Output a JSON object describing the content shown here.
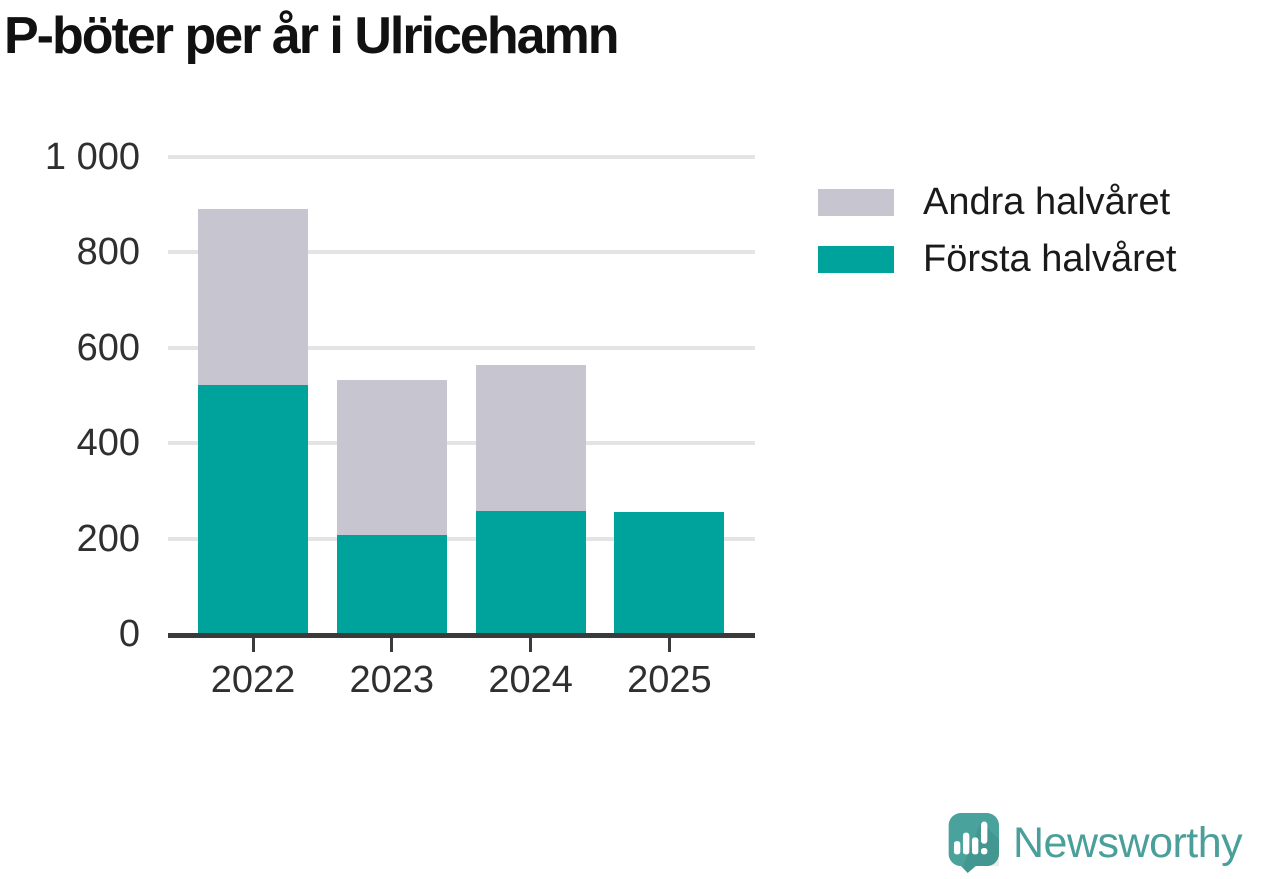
{
  "title": "P-böter per år i Ulricehamn",
  "legend": [
    {
      "label": "Andra halvåret",
      "color": "#c7c5d0"
    },
    {
      "label": "Första halvåret",
      "color": "#00a39b"
    }
  ],
  "chart_data": {
    "type": "bar",
    "stacked": true,
    "title": "P-böter per år i Ulricehamn",
    "categories": [
      "2022",
      "2023",
      "2024",
      "2025"
    ],
    "series": [
      {
        "name": "Första halvåret",
        "color": "#00a39b",
        "values": [
          522,
          208,
          257,
          255
        ]
      },
      {
        "name": "Andra halvåret",
        "color": "#c7c5d0",
        "values": [
          370,
          325,
          306,
          0
        ]
      }
    ],
    "totals": [
      892,
      533,
      563,
      255
    ],
    "xlabel": "",
    "ylabel": "",
    "ylim": [
      0,
      1000
    ],
    "yticks": [
      0,
      200,
      400,
      600,
      800,
      1000
    ],
    "ytick_labels": [
      "0",
      "200",
      "400",
      "600",
      "800",
      "1 000"
    ],
    "grid": "horizontal",
    "legend_position": "right-top",
    "colors": {
      "axis": "#3a3a3a",
      "gridline": "#e4e3e6",
      "tick_text": "#2f2f2f"
    }
  },
  "branding": {
    "name": "Newsworthy",
    "color": "#4a9f9a",
    "icon": "newsworthy-speech-bubble-chart-icon"
  }
}
